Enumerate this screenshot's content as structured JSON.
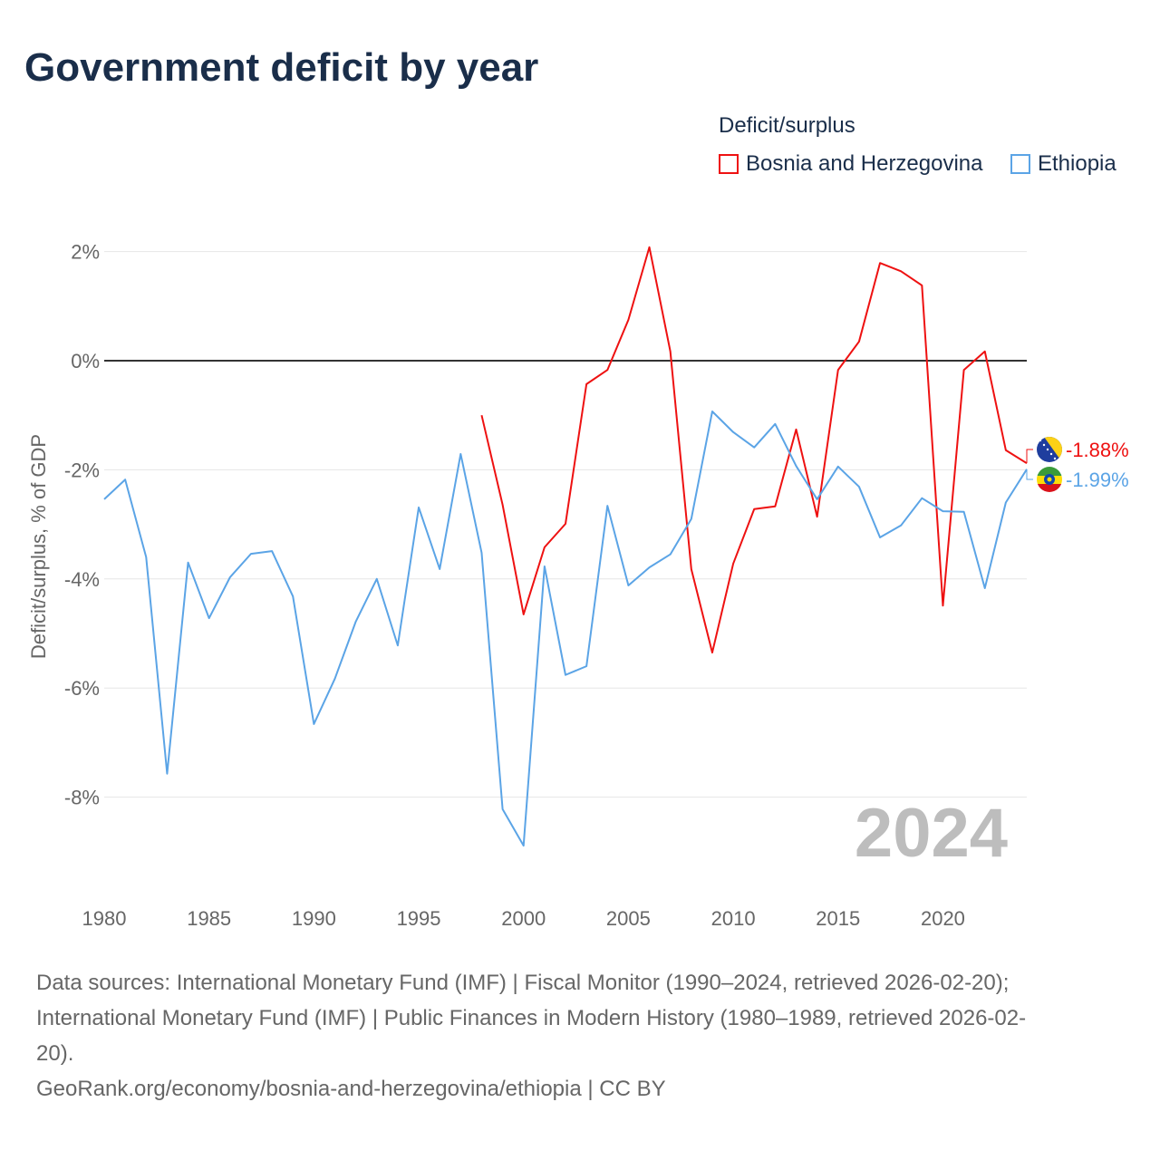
{
  "chart_data": {
    "type": "line",
    "title": "Government deficit by year",
    "ylabel": "Deficit/surplus, % of GDP",
    "xlabel": "",
    "xlim": [
      1980,
      2024
    ],
    "ylim": [
      -10,
      2.5
    ],
    "x_ticks": [
      "1980",
      "1985",
      "1990",
      "1995",
      "2000",
      "2005",
      "2010",
      "2015",
      "2020"
    ],
    "y_ticks": [
      "2%",
      "0%",
      "-2%",
      "-4%",
      "-6%",
      "-8%"
    ],
    "y_tick_values": [
      2,
      0,
      -2,
      -4,
      -6,
      -8
    ],
    "legend_title": "Deficit/surplus",
    "legend_position": "top-right",
    "year_watermark": "2024",
    "series": [
      {
        "name": "Bosnia and Herzegovina",
        "color": "#ee1111",
        "start_year": 1998,
        "values": [
          -1.0,
          -2.64,
          -4.65,
          -3.42,
          -2.99,
          -0.43,
          -0.17,
          0.75,
          2.08,
          0.17,
          -3.82,
          -5.35,
          -3.72,
          -2.72,
          -2.67,
          -1.26,
          -2.86,
          -0.17,
          0.35,
          1.79,
          1.64,
          1.38,
          -4.49,
          -0.17,
          0.17,
          -1.64,
          -1.88
        ],
        "end_label": "-1.88%"
      },
      {
        "name": "Ethiopia",
        "color": "#5ba4e6",
        "start_year": 1980,
        "values": [
          -2.54,
          -2.18,
          -3.6,
          -7.57,
          -3.7,
          -4.72,
          -3.97,
          -3.54,
          -3.49,
          -4.32,
          -6.66,
          -5.83,
          -4.78,
          -4.0,
          -5.22,
          -2.69,
          -3.82,
          -1.71,
          -3.52,
          -8.22,
          -8.89,
          -3.77,
          -5.76,
          -5.6,
          -2.66,
          -4.12,
          -3.79,
          -3.55,
          -2.9,
          -0.93,
          -1.31,
          -1.59,
          -1.16,
          -1.93,
          -2.54,
          -1.94,
          -2.31,
          -3.24,
          -3.02,
          -2.52,
          -2.76,
          -2.77,
          -4.17,
          -2.6,
          -1.99
        ],
        "end_label": "-1.99%"
      }
    ]
  },
  "sources": {
    "line1": "Data sources: International Monetary Fund (IMF) | Fiscal Monitor (1990–2024, retrieved 2026-02-20);",
    "line2": "International Monetary Fund (IMF) | Public Finances in Modern History (1980–1989, retrieved 2026-02-",
    "line3": "20).",
    "line4": "GeoRank.org/economy/bosnia-and-herzegovina/ethiopia | CC BY"
  }
}
